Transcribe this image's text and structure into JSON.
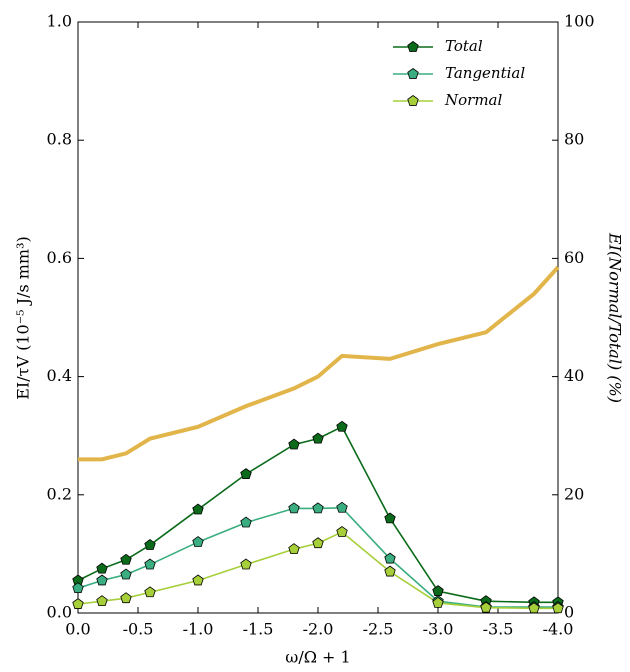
{
  "chart_data": {
    "type": "line",
    "x_label": "ω/Ω + 1",
    "y_label": "EI/τV (10⁻⁵ J/s mm³)",
    "y2_label": "EI(Normal/Total) (%)",
    "y2_label_color": "#e2b54b",
    "x": [
      0,
      -0.2,
      -0.4,
      -0.6,
      -1.0,
      -1.4,
      -1.8,
      -2.0,
      -2.2,
      -2.6,
      -3.0,
      -3.4,
      -3.8,
      -4.0
    ],
    "xlim": [
      0,
      -4
    ],
    "xticks": [
      {
        "value": 0,
        "label": "0.0"
      },
      -0.5,
      {
        "value": -1,
        "label": "-1.0"
      },
      -1.5,
      {
        "value": -2,
        "label": "-2.0"
      },
      -2.5,
      {
        "value": -3,
        "label": "-3.0"
      },
      -3.5,
      {
        "value": -4,
        "label": "-4.0"
      }
    ],
    "ylim": [
      0,
      1
    ],
    "yticks": [
      {
        "value": 0,
        "label": "0.0"
      },
      0.2,
      0.4,
      0.6,
      0.8,
      {
        "value": 1,
        "label": "1.0"
      }
    ],
    "y2lim": [
      0,
      100
    ],
    "y2ticks": [
      0,
      20,
      40,
      60,
      80,
      100
    ],
    "legend": "upper right",
    "series": [
      {
        "name": "Total",
        "color": "#0b6b1a",
        "marker": "pentagon",
        "values": [
          0.055,
          0.075,
          0.09,
          0.115,
          0.175,
          0.235,
          0.285,
          0.295,
          0.315,
          0.16,
          0.037,
          0.02,
          0.018,
          0.018
        ]
      },
      {
        "name": "Tangential",
        "color": "#3aae80",
        "marker": "pentagon",
        "values": [
          0.042,
          0.055,
          0.065,
          0.082,
          0.12,
          0.153,
          0.177,
          0.177,
          0.178,
          0.092,
          0.02,
          0.01,
          0.01,
          0.01
        ]
      },
      {
        "name": "Normal",
        "color": "#a6cf3a",
        "marker": "pentagon",
        "values": [
          0.015,
          0.02,
          0.025,
          0.035,
          0.055,
          0.082,
          0.108,
          0.118,
          0.137,
          0.07,
          0.017,
          0.009,
          0.008,
          0.008
        ]
      },
      {
        "color": "#e2b54b",
        "axis": "y2",
        "values": [
          26,
          26,
          27,
          29.5,
          31.5,
          35,
          38,
          40,
          43.5,
          43,
          45.5,
          47.5,
          54,
          58.5
        ]
      }
    ]
  }
}
